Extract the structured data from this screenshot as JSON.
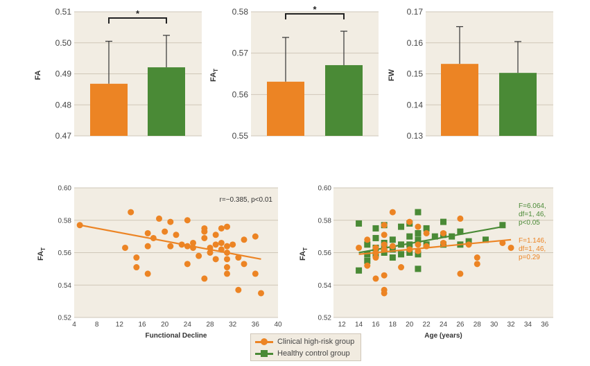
{
  "colors": {
    "orange": "#ec8424",
    "green": "#4a8a36",
    "panel_bg": "#f2ede3",
    "grid": "#cfc7b8",
    "text": "#444444"
  },
  "chart_data": [
    {
      "type": "bar",
      "ylabel": "FA",
      "ylim": [
        0.47,
        0.51
      ],
      "yticks": [
        "0.47",
        "0.48",
        "0.49",
        "0.50",
        "0.51"
      ],
      "categories": [
        "Clinical high-risk group",
        "Healthy control group"
      ],
      "values": [
        0.4868,
        0.4921
      ],
      "error_upper": [
        0.5005,
        0.5024
      ],
      "significance": "*",
      "grid": true
    },
    {
      "type": "bar",
      "ylabel": "FA",
      "ylabel_sub": "T",
      "ylim": [
        0.55,
        0.58
      ],
      "yticks": [
        "0.55",
        "0.56",
        "0.57",
        "0.58"
      ],
      "categories": [
        "Clinical high-risk group",
        "Healthy control group"
      ],
      "values": [
        0.5631,
        0.5671
      ],
      "error_upper": [
        0.5738,
        0.5753
      ],
      "significance": "*",
      "grid": true
    },
    {
      "type": "bar",
      "ylabel": "FW",
      "ylim": [
        0.13,
        0.17
      ],
      "yticks": [
        "0.13",
        "0.14",
        "0.15",
        "0.16",
        "0.17"
      ],
      "categories": [
        "Clinical high-risk group",
        "Healthy control group"
      ],
      "values": [
        0.1532,
        0.1503
      ],
      "error_upper": [
        0.1652,
        0.1604
      ],
      "significance": "",
      "grid": true
    },
    {
      "type": "scatter",
      "xlabel": "Functional Decline",
      "ylabel": "FA",
      "ylabel_sub": "T",
      "xlim": [
        4,
        40
      ],
      "ylim": [
        0.52,
        0.6
      ],
      "xticks": [
        "4",
        "8",
        "12",
        "16",
        "20",
        "24",
        "28",
        "32",
        "36",
        "40"
      ],
      "yticks": [
        "0.52",
        "0.54",
        "0.56",
        "0.58",
        "0.60"
      ],
      "annotation": "r=−0.385, p<0.01",
      "series": [
        {
          "group": "Clinical high-risk group",
          "points": [
            [
              5,
              0.577
            ],
            [
              13,
              0.563
            ],
            [
              14,
              0.585
            ],
            [
              15,
              0.557
            ],
            [
              15,
              0.551
            ],
            [
              17,
              0.572
            ],
            [
              17,
              0.564
            ],
            [
              17,
              0.547
            ],
            [
              18,
              0.569
            ],
            [
              19,
              0.581
            ],
            [
              20,
              0.573
            ],
            [
              21,
              0.579
            ],
            [
              21,
              0.564
            ],
            [
              22,
              0.571
            ],
            [
              23,
              0.565
            ],
            [
              24,
              0.58
            ],
            [
              24,
              0.564
            ],
            [
              24,
              0.553
            ],
            [
              25,
              0.566
            ],
            [
              25,
              0.563
            ],
            [
              26,
              0.558
            ],
            [
              27,
              0.575
            ],
            [
              27,
              0.573
            ],
            [
              27,
              0.569
            ],
            [
              27,
              0.544
            ],
            [
              28,
              0.563
            ],
            [
              28,
              0.56
            ],
            [
              29,
              0.571
            ],
            [
              29,
              0.565
            ],
            [
              29,
              0.556
            ],
            [
              30,
              0.575
            ],
            [
              30,
              0.566
            ],
            [
              30,
              0.562
            ],
            [
              31,
              0.576
            ],
            [
              31,
              0.564
            ],
            [
              31,
              0.56
            ],
            [
              31,
              0.556
            ],
            [
              31,
              0.551
            ],
            [
              31,
              0.547
            ],
            [
              32,
              0.565
            ],
            [
              33,
              0.557
            ],
            [
              33,
              0.537
            ],
            [
              34,
              0.553
            ],
            [
              34,
              0.568
            ],
            [
              36,
              0.57
            ],
            [
              36,
              0.547
            ],
            [
              37,
              0.535
            ]
          ],
          "trend": [
            [
              5,
              0.577
            ],
            [
              37,
              0.556
            ]
          ]
        }
      ]
    },
    {
      "type": "scatter",
      "xlabel": "Age (years)",
      "ylabel": "FA",
      "ylabel_sub": "T",
      "xlim": [
        11,
        37
      ],
      "ylim": [
        0.52,
        0.6
      ],
      "xticks": [
        "12",
        "14",
        "16",
        "18",
        "20",
        "22",
        "24",
        "26",
        "28",
        "30",
        "32",
        "34",
        "36"
      ],
      "yticks": [
        "0.52",
        "0.54",
        "0.56",
        "0.58",
        "0.60"
      ],
      "annotations": [
        {
          "group": "Healthy control group",
          "lines": [
            "F=6.064,",
            "df=1, 46,",
            "p<0.05"
          ]
        },
        {
          "group": "Clinical high-risk group",
          "lines": [
            "F=1.146,",
            "df=1, 46,",
            "p=0.29"
          ]
        }
      ],
      "series": [
        {
          "group": "Healthy control group",
          "marker": "square",
          "points": [
            [
              14,
              0.578
            ],
            [
              14,
              0.549
            ],
            [
              15,
              0.565
            ],
            [
              15,
              0.559
            ],
            [
              15,
              0.555
            ],
            [
              16,
              0.575
            ],
            [
              16,
              0.569
            ],
            [
              16,
              0.563
            ],
            [
              16,
              0.559
            ],
            [
              17,
              0.577
            ],
            [
              17,
              0.566
            ],
            [
              17,
              0.563
            ],
            [
              17,
              0.56
            ],
            [
              18,
              0.568
            ],
            [
              18,
              0.562
            ],
            [
              18,
              0.557
            ],
            [
              19,
              0.576
            ],
            [
              19,
              0.565
            ],
            [
              19,
              0.559
            ],
            [
              20,
              0.578
            ],
            [
              20,
              0.57
            ],
            [
              20,
              0.565
            ],
            [
              20,
              0.56
            ],
            [
              21,
              0.585
            ],
            [
              21,
              0.572
            ],
            [
              21,
              0.568
            ],
            [
              21,
              0.559
            ],
            [
              21,
              0.55
            ],
            [
              22,
              0.575
            ],
            [
              22,
              0.565
            ],
            [
              23,
              0.57
            ],
            [
              24,
              0.579
            ],
            [
              24,
              0.571
            ],
            [
              24,
              0.565
            ],
            [
              25,
              0.57
            ],
            [
              26,
              0.573
            ],
            [
              26,
              0.565
            ],
            [
              27,
              0.567
            ],
            [
              29,
              0.568
            ],
            [
              31,
              0.577
            ]
          ],
          "trend": [
            [
              14,
              0.56
            ],
            [
              31,
              0.576
            ]
          ]
        },
        {
          "group": "Clinical high-risk group",
          "marker": "circle",
          "points": [
            [
              14,
              0.563
            ],
            [
              15,
              0.568
            ],
            [
              15,
              0.552
            ],
            [
              16,
              0.563
            ],
            [
              16,
              0.56
            ],
            [
              16,
              0.557
            ],
            [
              16,
              0.544
            ],
            [
              17,
              0.577
            ],
            [
              17,
              0.571
            ],
            [
              17,
              0.565
            ],
            [
              17,
              0.562
            ],
            [
              17,
              0.546
            ],
            [
              17,
              0.537
            ],
            [
              17,
              0.535
            ],
            [
              18,
              0.585
            ],
            [
              18,
              0.564
            ],
            [
              19,
              0.551
            ],
            [
              20,
              0.579
            ],
            [
              20,
              0.562
            ],
            [
              21,
              0.576
            ],
            [
              21,
              0.565
            ],
            [
              21,
              0.561
            ],
            [
              22,
              0.572
            ],
            [
              22,
              0.564
            ],
            [
              24,
              0.572
            ],
            [
              24,
              0.566
            ],
            [
              26,
              0.581
            ],
            [
              26,
              0.547
            ],
            [
              27,
              0.565
            ],
            [
              28,
              0.557
            ],
            [
              28,
              0.553
            ],
            [
              31,
              0.566
            ],
            [
              32,
              0.563
            ]
          ],
          "trend": [
            [
              14,
              0.559
            ],
            [
              32,
              0.568
            ]
          ]
        }
      ]
    }
  ],
  "legend": {
    "items": [
      {
        "label": "Clinical high-risk group",
        "marker": "circle",
        "color_key": "orange"
      },
      {
        "label": "Healthy control group",
        "marker": "square",
        "color_key": "green"
      }
    ]
  }
}
